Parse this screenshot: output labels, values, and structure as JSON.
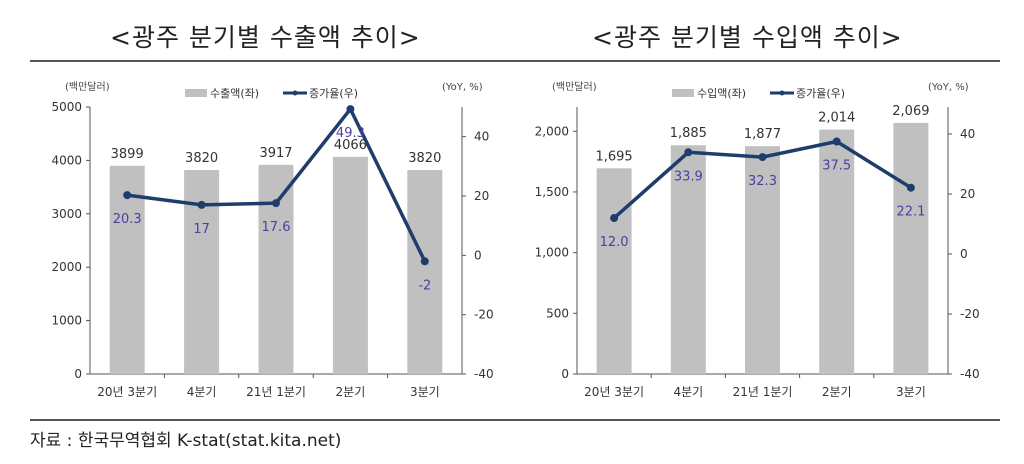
{
  "source": "자료 : 한국무역협회 K-stat(stat.kita.net)",
  "chart_data": [
    {
      "type": "bar+line",
      "title": "<광주 분기별 수출액 추이>",
      "categories": [
        "20년 3분기",
        "4분기",
        "21년 1분기",
        "2분기",
        "3분기"
      ],
      "left_unit": "(백만달러)",
      "right_unit": "(YoY, %)",
      "bar_series": {
        "name": "수출액(좌)",
        "values": [
          3899,
          3820,
          3917,
          4066,
          3820
        ],
        "labels": [
          "3899",
          "3820",
          "3917",
          "4066",
          "3820"
        ],
        "color": "#c0c0c0"
      },
      "line_series": {
        "name": "증가율(우)",
        "values": [
          20.3,
          17,
          17.6,
          49.3,
          -2
        ],
        "labels": [
          "20.3",
          "17",
          "17.6",
          "49.3",
          "-2"
        ],
        "color": "#1f3d6b",
        "label_color": "#4b3fa0"
      },
      "ylim_left": [
        0,
        5000
      ],
      "yticks_left": [
        "0",
        "1000",
        "2000",
        "3000",
        "4000",
        "5000"
      ],
      "yticks_left_values": [
        0,
        1000,
        2000,
        3000,
        4000,
        5000
      ],
      "ylim_right": [
        -40,
        50
      ],
      "yticks_right": [
        "-40",
        "-20",
        "0",
        "20",
        "40"
      ],
      "yticks_right_values": [
        -40,
        -20,
        0,
        20,
        40
      ]
    },
    {
      "type": "bar+line",
      "title": "<광주 분기별 수입액 추이>",
      "categories": [
        "20년 3분기",
        "4분기",
        "21년 1분기",
        "2분기",
        "3분기"
      ],
      "left_unit": "(백만달러)",
      "right_unit": "(YoY, %)",
      "bar_series": {
        "name": "수입액(좌)",
        "values": [
          1695,
          1885,
          1877,
          2014,
          2069
        ],
        "labels": [
          "1,695",
          "1,885",
          "1,877",
          "2,014",
          "2,069"
        ],
        "color": "#c0c0c0"
      },
      "line_series": {
        "name": "증가율(우)",
        "values": [
          12.0,
          33.9,
          32.3,
          37.5,
          22.1
        ],
        "labels": [
          "12.0",
          "33.9",
          "32.3",
          "37.5",
          "22.1"
        ],
        "color": "#1f3d6b",
        "label_color": "#4b3fa0"
      },
      "ylim_left": [
        0,
        2200
      ],
      "yticks_left": [
        "0",
        "500",
        "1,000",
        "1,500",
        "2,000"
      ],
      "yticks_left_values": [
        0,
        500,
        1000,
        1500,
        2000
      ],
      "ylim_right": [
        -40,
        49
      ],
      "yticks_right": [
        "-40",
        "-20",
        "0",
        "20",
        "40"
      ],
      "yticks_right_values": [
        -40,
        -20,
        0,
        20,
        40
      ]
    }
  ]
}
